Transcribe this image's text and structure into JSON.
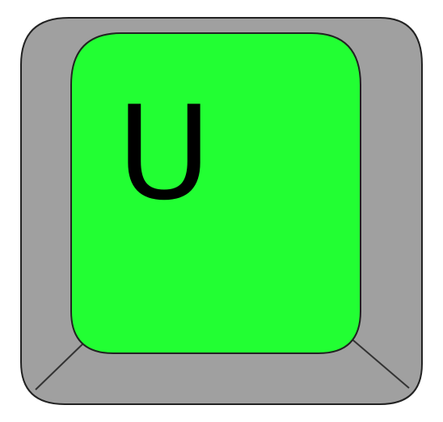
{
  "key": {
    "letter": "U",
    "colors": {
      "outer": "#a0a0a0",
      "face": "#22ff33",
      "outline": "#222222",
      "background": "#ffffff",
      "letter": "#000000"
    }
  }
}
